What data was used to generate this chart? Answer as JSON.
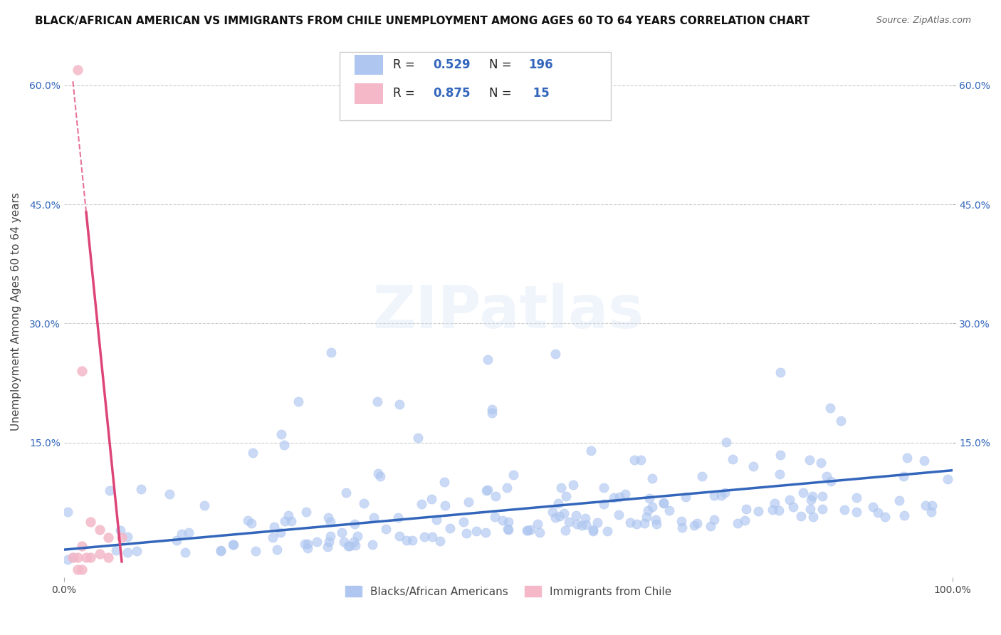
{
  "title": "BLACK/AFRICAN AMERICAN VS IMMIGRANTS FROM CHILE UNEMPLOYMENT AMONG AGES 60 TO 64 YEARS CORRELATION CHART",
  "source": "Source: ZipAtlas.com",
  "ylabel": "Unemployment Among Ages 60 to 64 years",
  "xlim": [
    0,
    1.0
  ],
  "ylim": [
    -0.02,
    0.65
  ],
  "xtick_labels": [
    "0.0%",
    "100.0%"
  ],
  "ytick_labels": [
    "15.0%",
    "30.0%",
    "45.0%",
    "60.0%"
  ],
  "ytick_values": [
    0.15,
    0.3,
    0.45,
    0.6
  ],
  "legend_entries": [
    {
      "label": "Blacks/African Americans",
      "color": "#aec6f0",
      "R": 0.529,
      "N": 196
    },
    {
      "label": "Immigrants from Chile",
      "color": "#f4a0b0",
      "R": 0.875,
      "N": 15
    }
  ],
  "watermark": "ZIPatlas",
  "background_color": "#ffffff",
  "grid_color": "#cccccc",
  "blue_scatter_color": "#aec6f0",
  "pink_scatter_color": "#f4b8c8",
  "blue_line_color": "#3366bb",
  "pink_line_color": "#dd4477",
  "title_fontsize": 11,
  "axis_label_fontsize": 11,
  "tick_fontsize": 10,
  "legend_fontsize": 12
}
